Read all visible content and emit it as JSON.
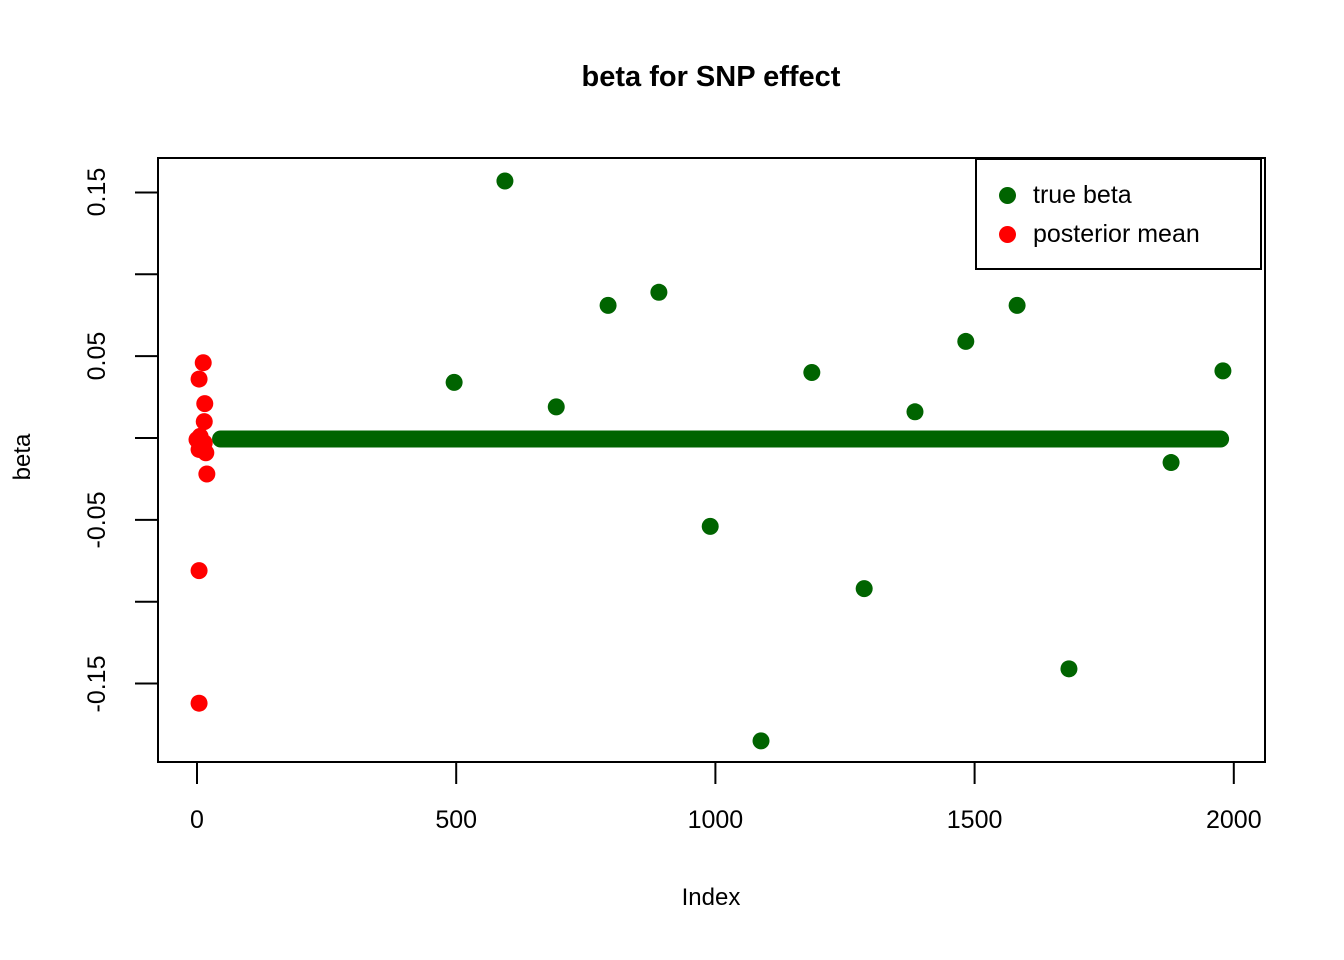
{
  "title": "beta for SNP effect",
  "axes": {
    "x_label": "Index",
    "y_label": "beta"
  },
  "legend": {
    "items": [
      {
        "label": "true beta",
        "color": "#006400"
      },
      {
        "label": "posterior mean",
        "#comment": "",
        "color": "#FF0000"
      }
    ]
  },
  "colors": {
    "true_beta": "#006400",
    "posterior_mean": "#FF0000",
    "axis": "#000000",
    "background": "#FFFFFF"
  },
  "chart_data": {
    "type": "scatter",
    "title": "beta for SNP effect",
    "xlabel": "Index",
    "ylabel": "beta",
    "xlim": [
      -80,
      2080
    ],
    "ylim": [
      -0.198,
      0.172
    ],
    "grid": false,
    "legend_position": "topright",
    "x_tick_values": [
      0,
      500,
      1000,
      1500,
      2000
    ],
    "x_tick_labels": [
      "0",
      "500",
      "1000",
      "1500",
      "2000"
    ],
    "y_tick_values_all": [
      0.15,
      0.1,
      0.05,
      0.0,
      -0.05,
      -0.1,
      -0.15
    ],
    "y_tick_values_labeled": [
      0.15,
      0.05,
      -0.05,
      -0.15
    ],
    "y_tick_labels": [
      "0.15",
      "0.05",
      "-0.05",
      "-0.15"
    ],
    "series": [
      {
        "name": "true beta",
        "color": "#006400",
        "marker": "filled-circle",
        "zero_run": {
          "from_index": 30,
          "to_index": 1990,
          "value": 0.0,
          "note": "dense run of points at beta=0 forming a thick horizontal line"
        },
        "points": [
          {
            "index": 496,
            "value": 0.034
          },
          {
            "index": 594,
            "value": 0.157
          },
          {
            "index": 693,
            "value": 0.019
          },
          {
            "index": 793,
            "value": 0.081
          },
          {
            "index": 891,
            "value": 0.089
          },
          {
            "index": 990,
            "value": -0.054
          },
          {
            "index": 1088,
            "value": -0.185
          },
          {
            "index": 1186,
            "value": 0.04
          },
          {
            "index": 1287,
            "value": -0.092
          },
          {
            "index": 1385,
            "value": 0.016
          },
          {
            "index": 1483,
            "value": 0.059
          },
          {
            "index": 1582,
            "value": 0.081
          },
          {
            "index": 1682,
            "value": -0.141
          },
          {
            "index": 1879,
            "value": -0.015
          },
          {
            "index": 1979,
            "value": 0.041
          }
        ]
      },
      {
        "name": "posterior mean",
        "color": "#FF0000",
        "marker": "filled-circle",
        "points": [
          {
            "index": 12,
            "value": 0.046
          },
          {
            "index": 4,
            "value": 0.036
          },
          {
            "index": 15,
            "value": 0.021
          },
          {
            "index": 14,
            "value": 0.01
          },
          {
            "index": 6,
            "value": 0.001
          },
          {
            "index": 0,
            "value": -0.001
          },
          {
            "index": 14,
            "value": -0.003
          },
          {
            "index": 4,
            "value": -0.007
          },
          {
            "index": 17,
            "value": -0.009
          },
          {
            "index": 19,
            "value": -0.022
          },
          {
            "index": 4,
            "value": -0.081
          },
          {
            "index": 4,
            "value": -0.162
          }
        ]
      }
    ]
  }
}
